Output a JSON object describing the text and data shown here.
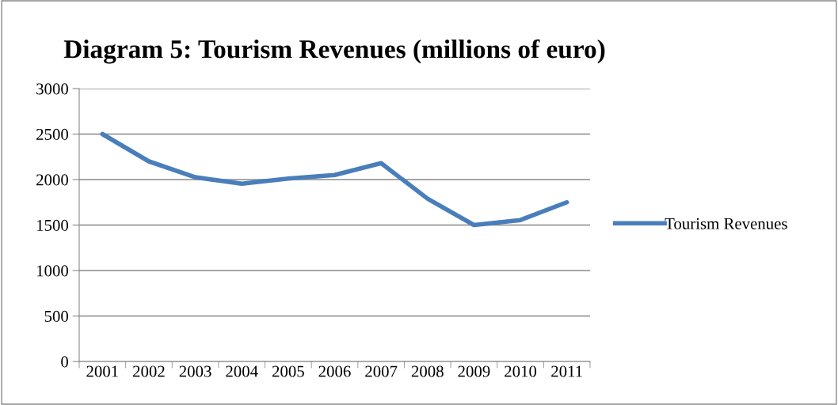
{
  "chart_data": {
    "type": "line",
    "title": "Diagram 5: Tourism Revenues (millions of euro)",
    "categories": [
      "2001",
      "2002",
      "2003",
      "2004",
      "2005",
      "2006",
      "2007",
      "2008",
      "2009",
      "2010",
      "2011"
    ],
    "series": [
      {
        "name": "Tourism Revenues",
        "color": "#4a7ebb",
        "values": [
          2500,
          2200,
          2025,
          1955,
          2010,
          2050,
          2180,
          1790,
          1500,
          1555,
          1750
        ]
      }
    ],
    "ylim": [
      0,
      3000
    ],
    "yticks": [
      0,
      500,
      1000,
      1500,
      2000,
      2500,
      3000
    ],
    "grid": "y",
    "legend": "right",
    "marker": "none",
    "line_style": "solid"
  }
}
